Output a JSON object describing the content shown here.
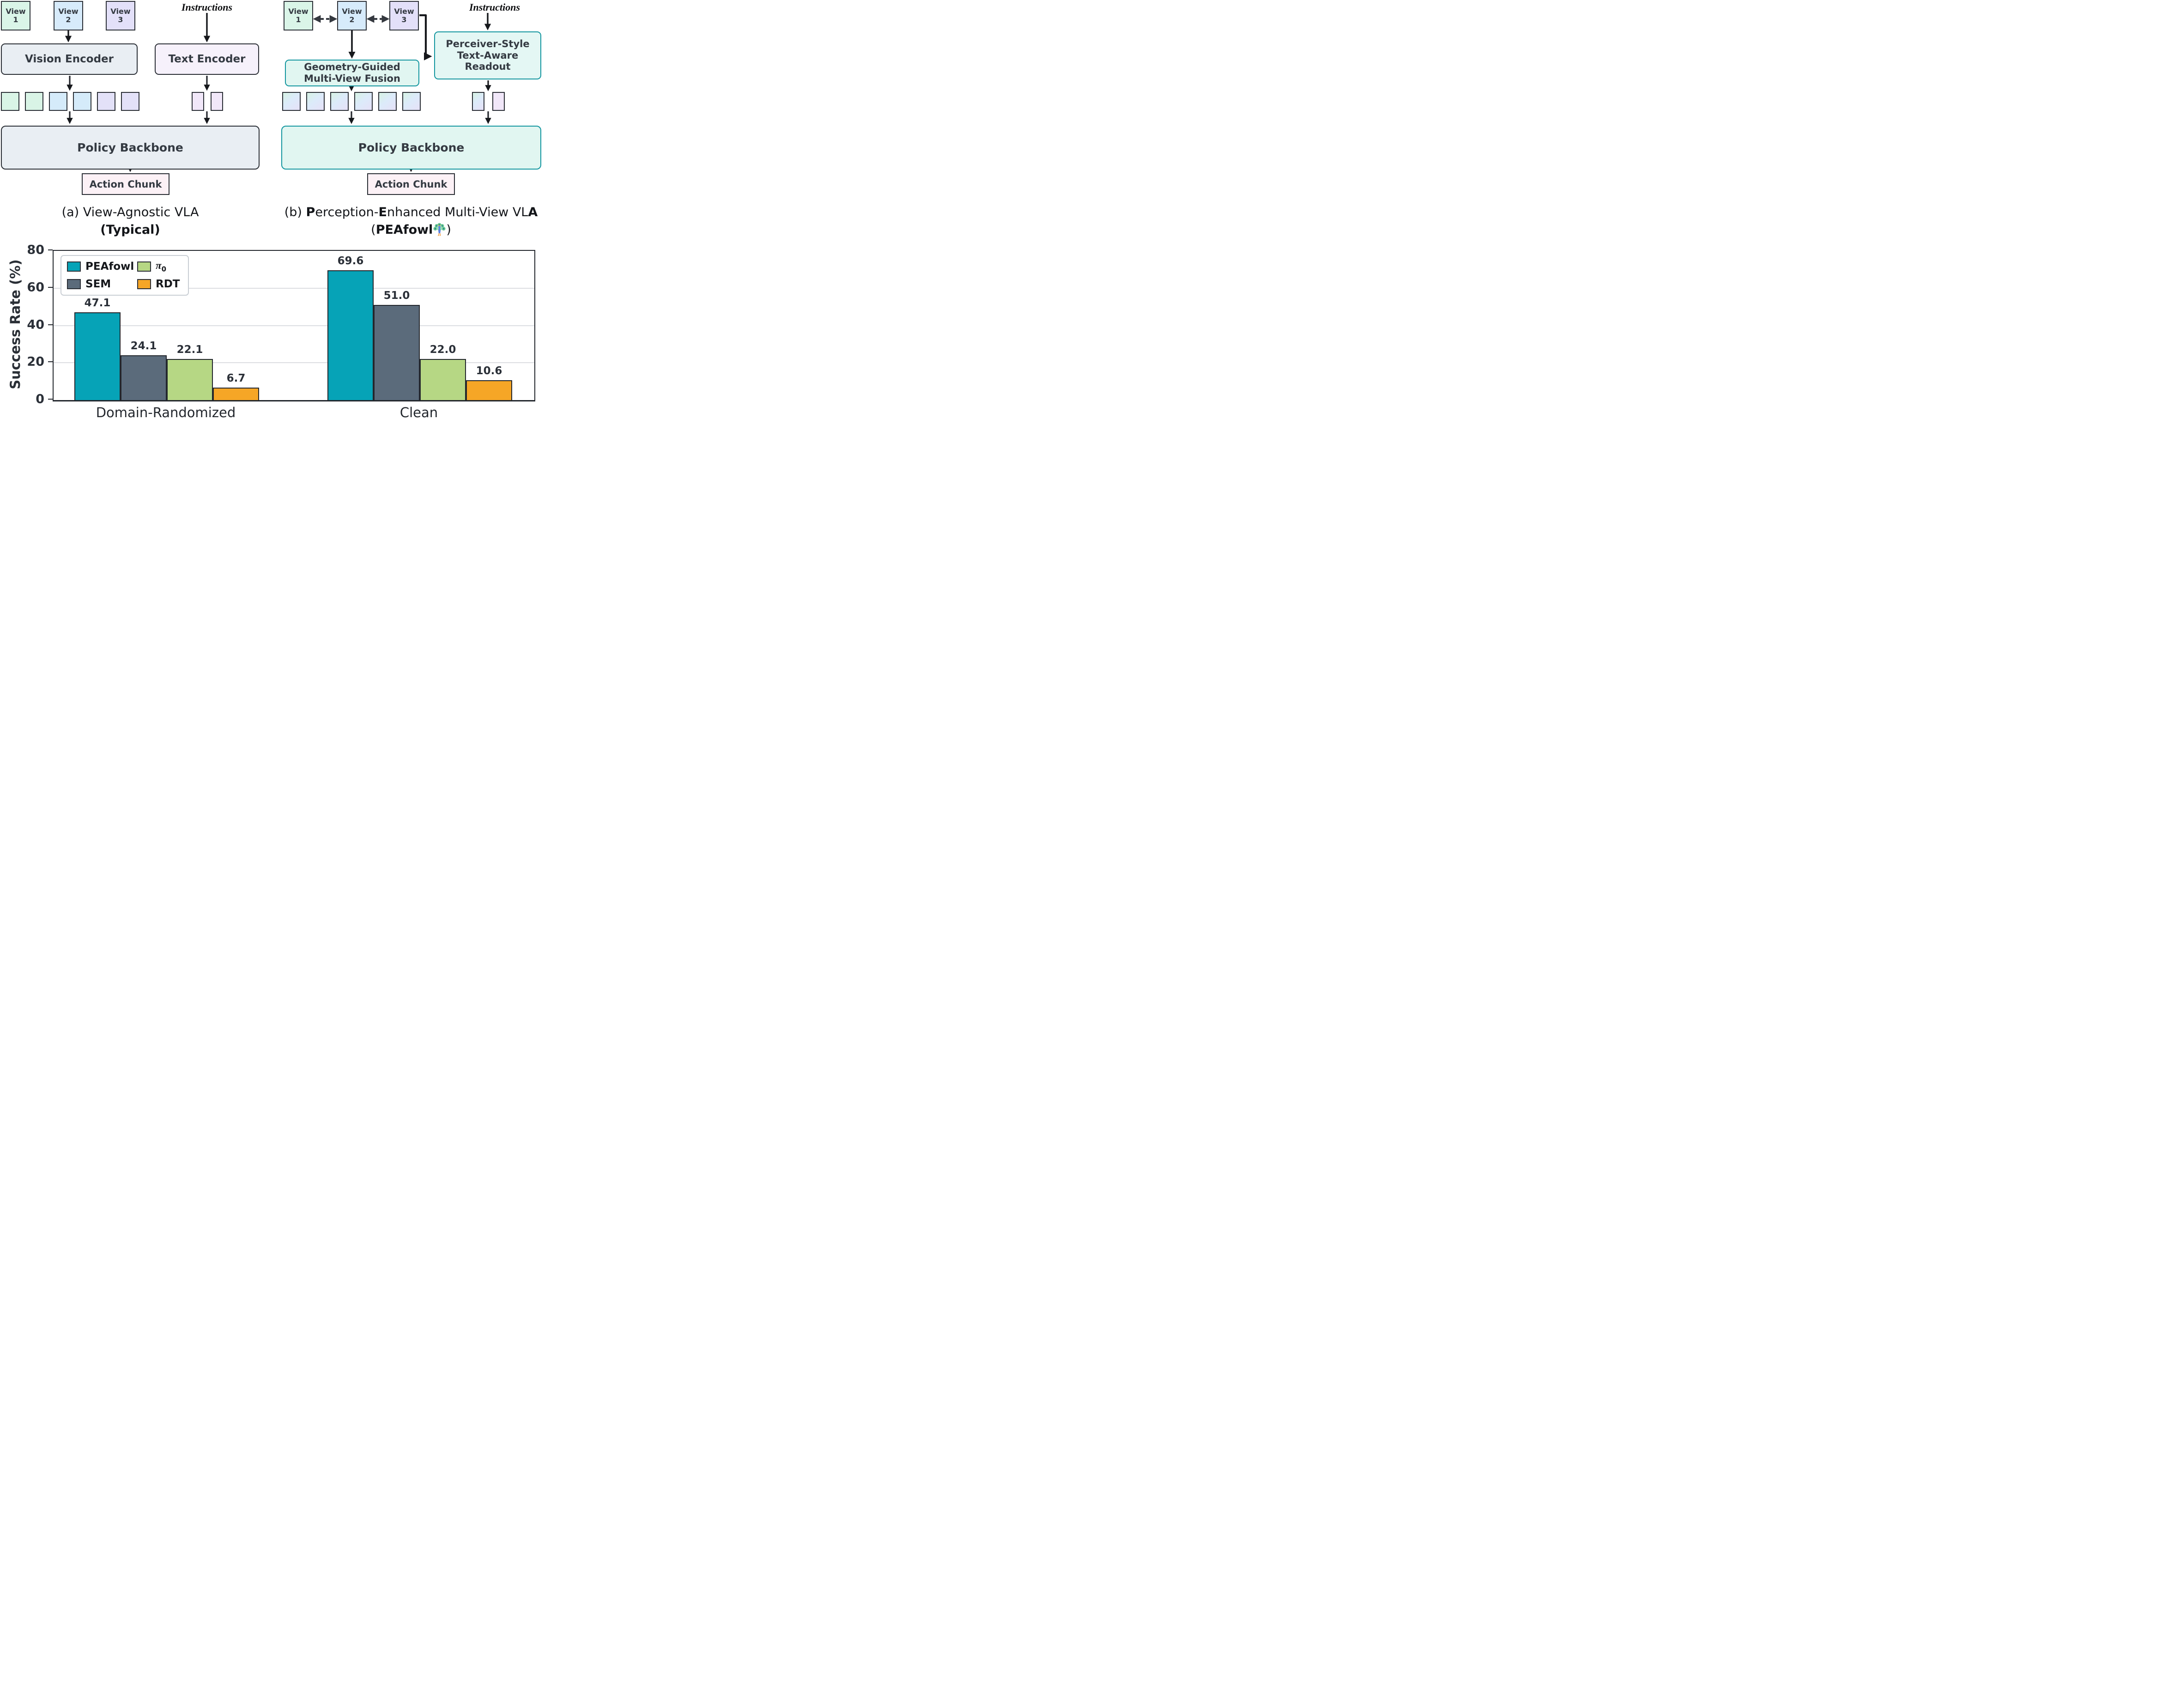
{
  "diagram_a": {
    "views": [
      {
        "line1": "View",
        "line2": "1"
      },
      {
        "line1": "View",
        "line2": "2"
      },
      {
        "line1": "View",
        "line2": "3"
      }
    ],
    "instructions": "Instructions",
    "vision_encoder": "Vision Encoder",
    "text_encoder": "Text Encoder",
    "policy_backbone": "Policy Backbone",
    "action_chunk": "Action Chunk",
    "caption_line1": "(a) View-Agnostic VLA",
    "caption_line2": "(Typical)",
    "vision_tokens": [
      "green",
      "green",
      "blue",
      "blue",
      "purple",
      "purple"
    ],
    "text_tokens": [
      "pink",
      "pink"
    ]
  },
  "diagram_b": {
    "views": [
      {
        "line1": "View",
        "line2": "1"
      },
      {
        "line1": "View",
        "line2": "2"
      },
      {
        "line1": "View",
        "line2": "3"
      }
    ],
    "instructions": "Instructions",
    "fusion_line1": "Geometry-Guided",
    "fusion_line2": "Multi-View Fusion",
    "readout_line1": "Perceiver-Style",
    "readout_line2": "Text-Aware",
    "readout_line3": "Readout",
    "policy_backbone": "Policy Backbone",
    "action_chunk": "Action Chunk",
    "caption_seg1": "(b) ",
    "caption_bold1": "P",
    "caption_seg2": "erception-",
    "caption_bold2": "E",
    "caption_seg3": "nhanced Multi-View VL",
    "caption_bold3": "A",
    "caption2_open": "(",
    "caption2_name": "PEAfowl",
    "caption2_close": ")",
    "fused_tokens": [
      "fused",
      "fused",
      "fused",
      "fused",
      "fused",
      "fused"
    ],
    "text_tokens": [
      "fused",
      "pink"
    ]
  },
  "colors": {
    "teal_border": "#13969f",
    "dark_border": "#2b2f36",
    "peafowl": "#06a3b7",
    "sem": "#5b6b7b",
    "pi0": "#b6d784",
    "rdt": "#f6a626"
  },
  "chart_data": {
    "type": "bar",
    "categories": [
      "Domain-Randomized",
      "Clean"
    ],
    "series": [
      {
        "name": "PEAfowl",
        "color": "#06a3b7",
        "values": [
          47.1,
          69.6
        ]
      },
      {
        "name": "SEM",
        "color": "#5b6b7b",
        "values": [
          24.1,
          51.0
        ]
      },
      {
        "name": "π0",
        "base": "π",
        "sub": "0",
        "color": "#b6d784",
        "values": [
          22.1,
          22.0
        ]
      },
      {
        "name": "RDT",
        "color": "#f6a626",
        "values": [
          6.7,
          10.6
        ]
      }
    ],
    "ylabel": "Success Rate (%)",
    "ylim": [
      0,
      80
    ],
    "yticks": [
      0,
      20,
      40,
      60,
      80
    ],
    "grid": "horizontal",
    "legend_position": "upper left",
    "bar_labels": true
  }
}
